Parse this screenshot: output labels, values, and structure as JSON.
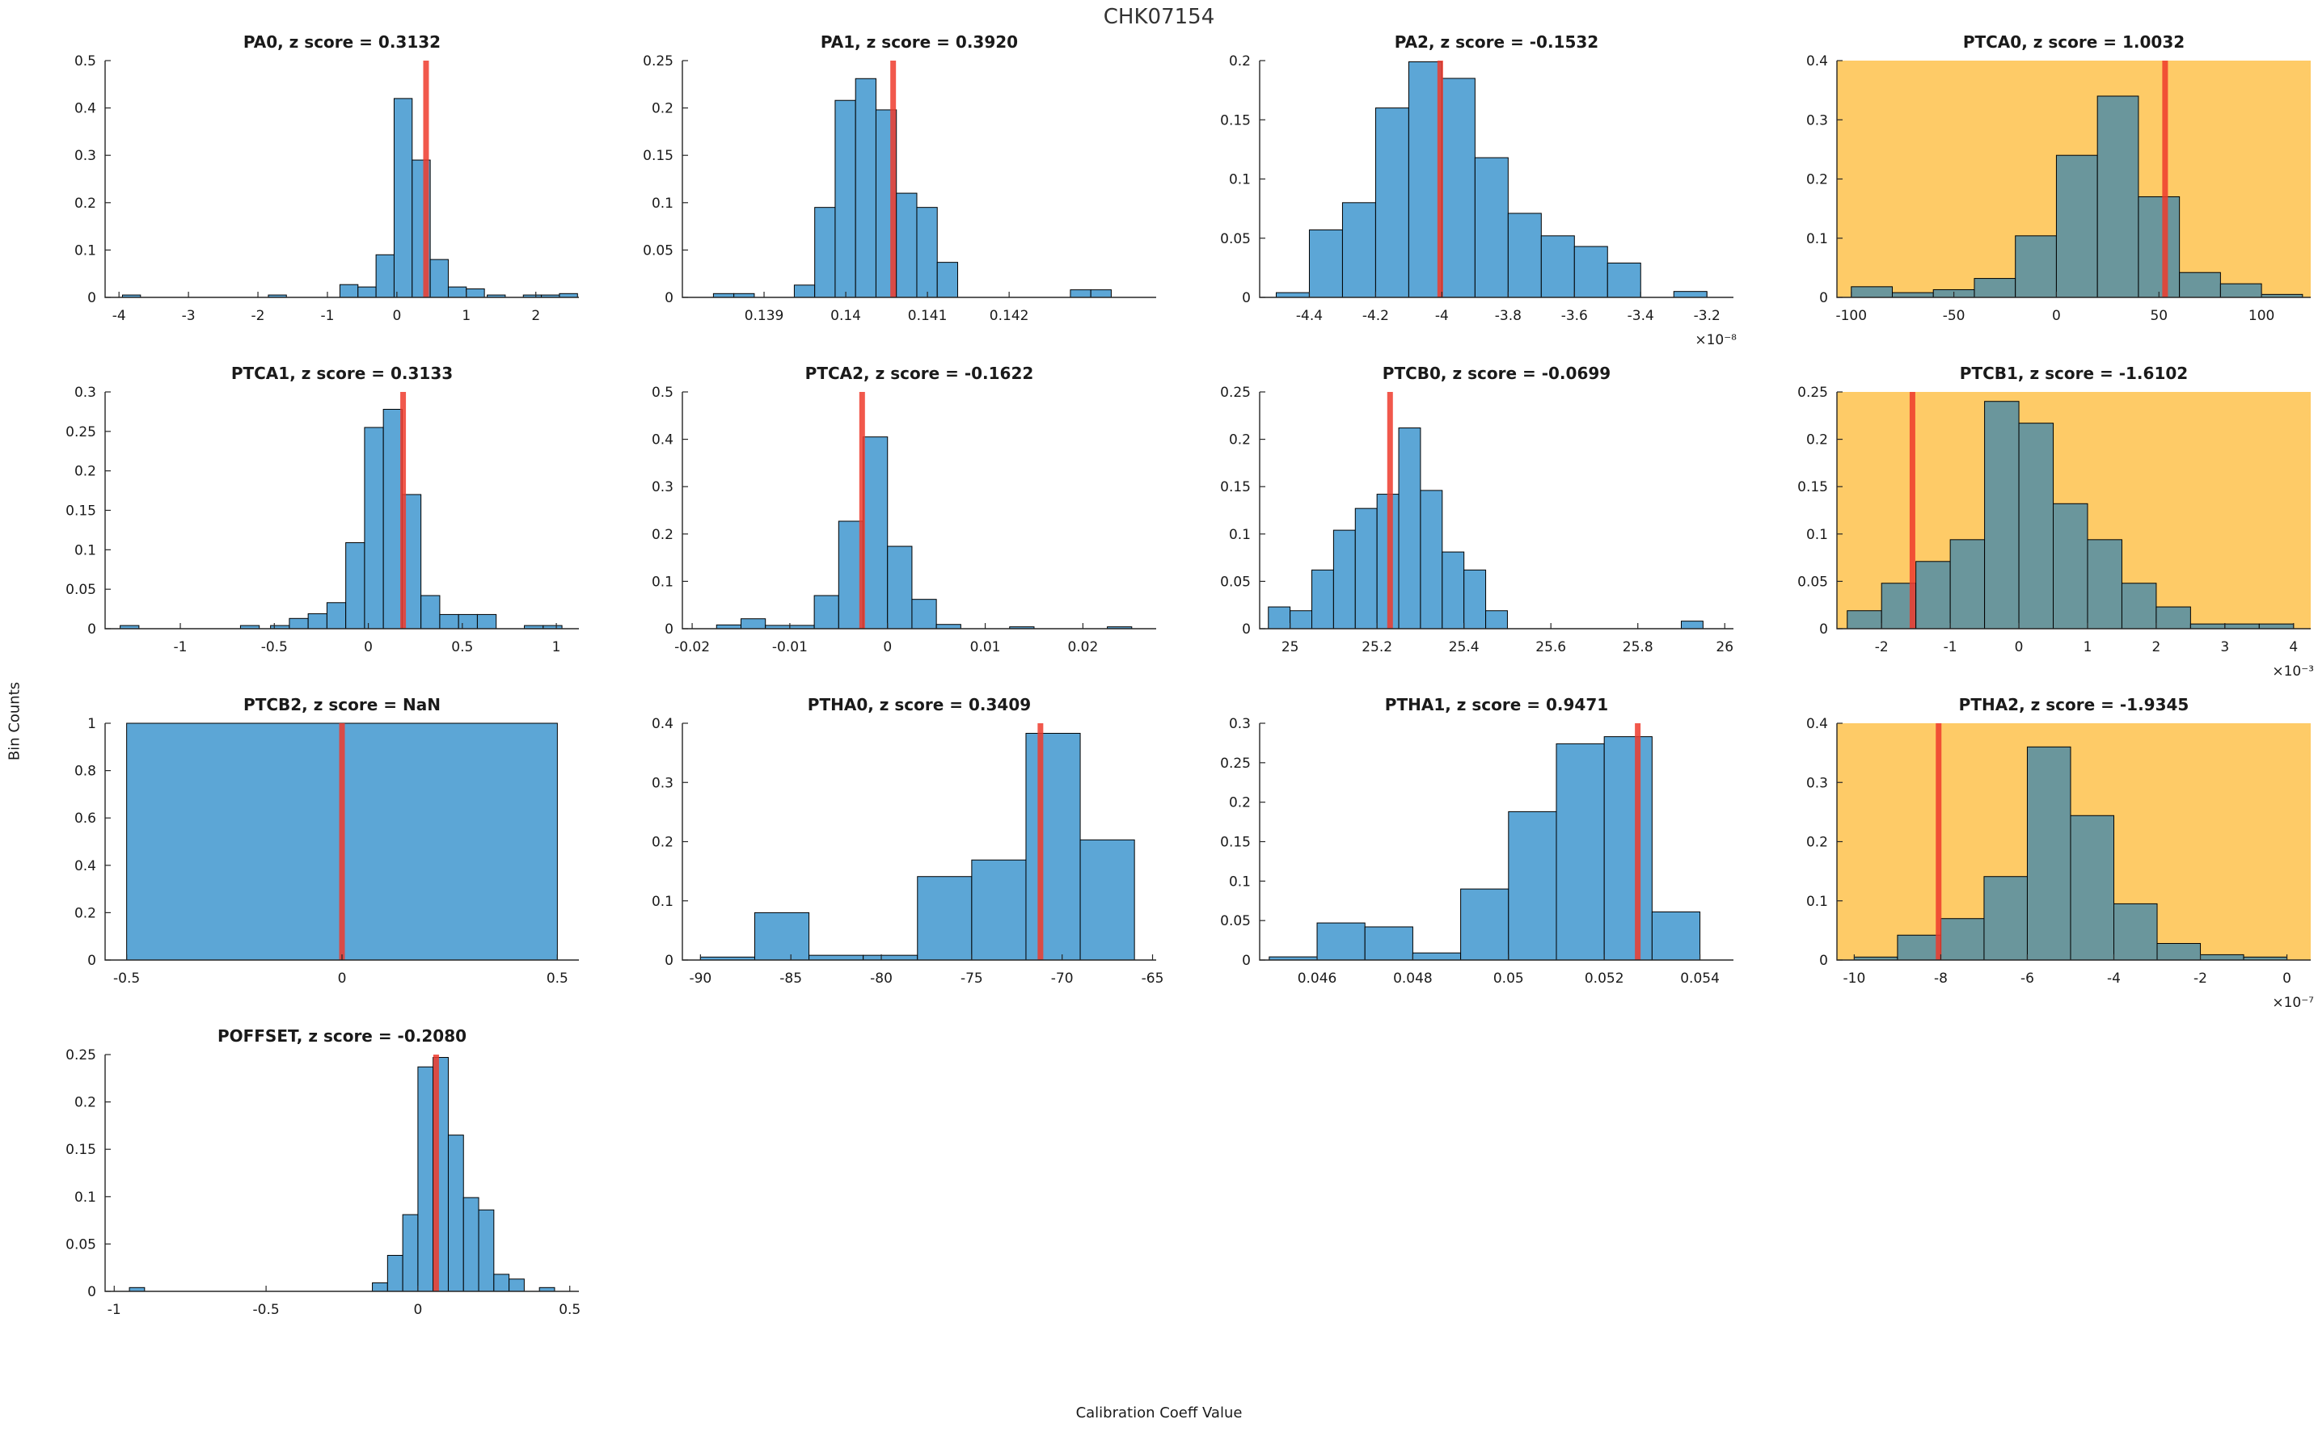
{
  "figure": {
    "title": "CHK07154",
    "xlabel": "Calibration Coeff Value",
    "ylabel": "Bin Counts"
  },
  "colors": {
    "bar_fill": "#5ca6d6",
    "bar_fill_flagged": "#6a969c",
    "bar_edge": "#000000",
    "flag_background": "#fecb67",
    "red_line": "#ef3b2d",
    "axis": "#262626",
    "title_text": "#1a1a1a"
  },
  "chart_data": [
    {
      "type": "bar",
      "name": "PA0",
      "title": "PA0, z score = 0.3132",
      "z_score": 0.3132,
      "flagged": false,
      "xlim": [
        -4.2,
        2.62
      ],
      "ylim": [
        0,
        0.5
      ],
      "xticks": [
        -4,
        -3,
        -2,
        -1,
        0,
        1,
        2
      ],
      "xtick_labels": [
        "-4",
        "-3",
        "-2",
        "-1",
        "0",
        "1",
        "2"
      ],
      "yticks": [
        0,
        0.1,
        0.2,
        0.3,
        0.4,
        0.5
      ],
      "ytick_labels": [
        "0",
        "0.1",
        "0.2",
        "0.3",
        "0.4",
        "0.5"
      ],
      "x_exponent": null,
      "bin_width": 0.26,
      "bars": [
        [
          -3.95,
          0.005
        ],
        [
          -1.85,
          0.005
        ],
        [
          -0.82,
          0.027
        ],
        [
          -0.56,
          0.022
        ],
        [
          -0.3,
          0.09
        ],
        [
          -0.04,
          0.42
        ],
        [
          0.22,
          0.29
        ],
        [
          0.48,
          0.08
        ],
        [
          0.74,
          0.022
        ],
        [
          1.0,
          0.018
        ],
        [
          1.3,
          0.005
        ],
        [
          1.82,
          0.005
        ],
        [
          2.08,
          0.005
        ],
        [
          2.34,
          0.008
        ]
      ],
      "red_line_x": 0.42
    },
    {
      "type": "bar",
      "name": "PA1",
      "title": "PA1, z score = 0.3920",
      "z_score": 0.392,
      "flagged": false,
      "xlim": [
        0.138,
        0.1438
      ],
      "ylim": [
        0,
        0.25
      ],
      "xticks": [
        0.139,
        0.14,
        0.141,
        0.142
      ],
      "xtick_labels": [
        "0.139",
        "0.14",
        "0.141",
        "0.142"
      ],
      "yticks": [
        0,
        0.05,
        0.1,
        0.15,
        0.2,
        0.25
      ],
      "ytick_labels": [
        "0",
        "0.05",
        "0.1",
        "0.15",
        "0.2",
        "0.25"
      ],
      "x_exponent": null,
      "bin_width": 0.00025,
      "bars": [
        [
          0.13838,
          0.004
        ],
        [
          0.13863,
          0.004
        ],
        [
          0.13937,
          0.013
        ],
        [
          0.13962,
          0.095
        ],
        [
          0.13987,
          0.208
        ],
        [
          0.14012,
          0.231
        ],
        [
          0.14037,
          0.198
        ],
        [
          0.14062,
          0.11
        ],
        [
          0.14087,
          0.095
        ],
        [
          0.14112,
          0.037
        ],
        [
          0.14275,
          0.008
        ],
        [
          0.143,
          0.008
        ]
      ],
      "red_line_x": 0.14058
    },
    {
      "type": "bar",
      "name": "PA2",
      "title": "PA2, z score = -0.1532",
      "z_score": -0.1532,
      "flagged": false,
      "xlim": [
        -4.55,
        -3.12
      ],
      "ylim": [
        0,
        0.2
      ],
      "xticks": [
        -4.4,
        -4.2,
        -4,
        -3.8,
        -3.6,
        -3.4,
        -3.2
      ],
      "xtick_labels": [
        "-4.4",
        "-4.2",
        "-4",
        "-3.8",
        "-3.6",
        "-3.4",
        "-3.2"
      ],
      "yticks": [
        0,
        0.05,
        0.1,
        0.15,
        0.2
      ],
      "ytick_labels": [
        "0",
        "0.05",
        "0.1",
        "0.15",
        "0.2"
      ],
      "x_exponent": "×10⁻⁸",
      "bin_width": 0.1,
      "bars": [
        [
          -4.5,
          0.004
        ],
        [
          -4.4,
          0.057
        ],
        [
          -4.3,
          0.08
        ],
        [
          -4.2,
          0.16
        ],
        [
          -4.1,
          0.199
        ],
        [
          -4.0,
          0.185
        ],
        [
          -3.9,
          0.118
        ],
        [
          -3.8,
          0.071
        ],
        [
          -3.7,
          0.052
        ],
        [
          -3.6,
          0.043
        ],
        [
          -3.5,
          0.029
        ],
        [
          -3.3,
          0.005
        ]
      ],
      "red_line_x": -4.005
    },
    {
      "type": "bar",
      "name": "PTCA0",
      "title": "PTCA0, z score = 1.0032",
      "z_score": 1.0032,
      "flagged": true,
      "xlim": [
        -107,
        124
      ],
      "ylim": [
        0,
        0.4
      ],
      "xticks": [
        -100,
        -50,
        0,
        50,
        100
      ],
      "xtick_labels": [
        "-100",
        "-50",
        "0",
        "50",
        "100"
      ],
      "yticks": [
        0,
        0.1,
        0.2,
        0.3,
        0.4
      ],
      "ytick_labels": [
        "0",
        "0.1",
        "0.2",
        "0.3",
        "0.4"
      ],
      "x_exponent": null,
      "bin_width": 20,
      "bars": [
        [
          -100,
          0.018
        ],
        [
          -80,
          0.008
        ],
        [
          -60,
          0.013
        ],
        [
          -40,
          0.032
        ],
        [
          -20,
          0.104
        ],
        [
          0,
          0.24
        ],
        [
          20,
          0.34
        ],
        [
          40,
          0.17
        ],
        [
          60,
          0.042
        ],
        [
          80,
          0.023
        ],
        [
          100,
          0.005
        ]
      ],
      "red_line_x": 53
    },
    {
      "type": "bar",
      "name": "PTCA1",
      "title": "PTCA1, z score = 0.3133",
      "z_score": 0.3133,
      "flagged": false,
      "xlim": [
        -1.4,
        1.12
      ],
      "ylim": [
        0,
        0.3
      ],
      "xticks": [
        -1,
        -0.5,
        0,
        0.5,
        1
      ],
      "xtick_labels": [
        "-1",
        "-0.5",
        "0",
        "0.5",
        "1"
      ],
      "yticks": [
        0,
        0.05,
        0.1,
        0.15,
        0.2,
        0.25,
        0.3
      ],
      "ytick_labels": [
        "0",
        "0.05",
        "0.1",
        "0.15",
        "0.2",
        "0.25",
        "0.3"
      ],
      "x_exponent": null,
      "bin_width": 0.1,
      "bars": [
        [
          -1.32,
          0.004
        ],
        [
          -0.68,
          0.004
        ],
        [
          -0.52,
          0.004
        ],
        [
          -0.42,
          0.013
        ],
        [
          -0.32,
          0.019
        ],
        [
          -0.22,
          0.033
        ],
        [
          -0.12,
          0.109
        ],
        [
          -0.02,
          0.255
        ],
        [
          0.08,
          0.278
        ],
        [
          0.18,
          0.17
        ],
        [
          0.28,
          0.042
        ],
        [
          0.38,
          0.018
        ],
        [
          0.48,
          0.018
        ],
        [
          0.58,
          0.018
        ],
        [
          0.83,
          0.004
        ],
        [
          0.93,
          0.004
        ]
      ],
      "red_line_x": 0.185
    },
    {
      "type": "bar",
      "name": "PTCA2",
      "title": "PTCA2, z score = -0.1622",
      "z_score": -0.1622,
      "flagged": false,
      "xlim": [
        -0.021,
        0.0275
      ],
      "ylim": [
        0,
        0.5
      ],
      "xticks": [
        -0.02,
        -0.01,
        0,
        0.01,
        0.02
      ],
      "xtick_labels": [
        "-0.02",
        "-0.01",
        "0",
        "0.01",
        "0.02"
      ],
      "yticks": [
        0,
        0.1,
        0.2,
        0.3,
        0.4,
        0.5
      ],
      "ytick_labels": [
        "0",
        "0.1",
        "0.2",
        "0.3",
        "0.4",
        "0.5"
      ],
      "x_exponent": null,
      "bin_width": 0.0025,
      "bars": [
        [
          -0.0175,
          0.008
        ],
        [
          -0.015,
          0.021
        ],
        [
          -0.0125,
          0.007
        ],
        [
          -0.01,
          0.007
        ],
        [
          -0.0075,
          0.07
        ],
        [
          -0.005,
          0.227
        ],
        [
          -0.0025,
          0.405
        ],
        [
          0,
          0.174
        ],
        [
          0.0025,
          0.062
        ],
        [
          0.005,
          0.009
        ],
        [
          0.0125,
          0.004
        ],
        [
          0.0225,
          0.004
        ]
      ],
      "red_line_x": -0.0026
    },
    {
      "type": "bar",
      "name": "PTCB0",
      "title": "PTCB0, z score = -0.0699",
      "z_score": -0.0699,
      "flagged": false,
      "xlim": [
        24.93,
        26.02
      ],
      "ylim": [
        0,
        0.25
      ],
      "xticks": [
        25,
        25.2,
        25.4,
        25.6,
        25.8,
        26
      ],
      "xtick_labels": [
        "25",
        "25.2",
        "25.4",
        "25.6",
        "25.8",
        "26"
      ],
      "yticks": [
        0,
        0.05,
        0.1,
        0.15,
        0.2,
        0.25
      ],
      "ytick_labels": [
        "0",
        "0.05",
        "0.1",
        "0.15",
        "0.2",
        "0.25"
      ],
      "x_exponent": null,
      "bin_width": 0.05,
      "bars": [
        [
          24.95,
          0.023
        ],
        [
          25.0,
          0.019
        ],
        [
          25.05,
          0.062
        ],
        [
          25.1,
          0.104
        ],
        [
          25.15,
          0.127
        ],
        [
          25.2,
          0.142
        ],
        [
          25.25,
          0.212
        ],
        [
          25.3,
          0.146
        ],
        [
          25.35,
          0.081
        ],
        [
          25.4,
          0.062
        ],
        [
          25.45,
          0.019
        ],
        [
          25.9,
          0.008
        ]
      ],
      "red_line_x": 25.23
    },
    {
      "type": "bar",
      "name": "PTCB1",
      "title": "PTCB1, z score = -1.6102",
      "z_score": -1.6102,
      "flagged": true,
      "xlim": [
        -2.65,
        4.25
      ],
      "ylim": [
        0,
        0.25
      ],
      "xticks": [
        -2,
        -1,
        0,
        1,
        2,
        3,
        4
      ],
      "xtick_labels": [
        "-2",
        "-1",
        "0",
        "1",
        "2",
        "3",
        "4"
      ],
      "yticks": [
        0,
        0.05,
        0.1,
        0.15,
        0.2,
        0.25
      ],
      "ytick_labels": [
        "0",
        "0.05",
        "0.1",
        "0.15",
        "0.2",
        "0.25"
      ],
      "x_exponent": "×10⁻³",
      "bin_width": 0.5,
      "bars": [
        [
          -2.5,
          0.019
        ],
        [
          -2,
          0.048
        ],
        [
          -1.5,
          0.071
        ],
        [
          -1,
          0.094
        ],
        [
          -0.5,
          0.24
        ],
        [
          0,
          0.217
        ],
        [
          0.5,
          0.132
        ],
        [
          1,
          0.094
        ],
        [
          1.5,
          0.048
        ],
        [
          2,
          0.023
        ],
        [
          2.5,
          0.005
        ],
        [
          3,
          0.005
        ],
        [
          3.5,
          0.005
        ]
      ],
      "red_line_x": -1.55
    },
    {
      "type": "bar",
      "name": "PTCB2",
      "title": "PTCB2, z score = NaN",
      "z_score": "NaN",
      "flagged": false,
      "xlim": [
        -0.55,
        0.55
      ],
      "ylim": [
        0,
        1
      ],
      "xticks": [
        -0.5,
        0,
        0.5
      ],
      "xtick_labels": [
        "-0.5",
        "0",
        "0.5"
      ],
      "yticks": [
        0,
        0.2,
        0.4,
        0.6,
        0.8,
        1
      ],
      "ytick_labels": [
        "0",
        "0.2",
        "0.4",
        "0.6",
        "0.8",
        "1"
      ],
      "x_exponent": null,
      "bin_width": 1.0,
      "bars": [
        [
          -0.5,
          1.0
        ]
      ],
      "red_line_x": 0
    },
    {
      "type": "bar",
      "name": "PTHA0",
      "title": "PTHA0, z score = 0.3409",
      "z_score": 0.3409,
      "flagged": false,
      "xlim": [
        -91,
        -64.8
      ],
      "ylim": [
        0,
        0.4
      ],
      "xticks": [
        -90,
        -85,
        -80,
        -75,
        -70,
        -65
      ],
      "xtick_labels": [
        "-90",
        "-85",
        "-80",
        "-75",
        "-70",
        "-65"
      ],
      "yticks": [
        0,
        0.1,
        0.2,
        0.3,
        0.4
      ],
      "ytick_labels": [
        "0",
        "0.1",
        "0.2",
        "0.3",
        "0.4"
      ],
      "x_exponent": null,
      "bin_width": 3,
      "bars": [
        [
          -90,
          0.005
        ],
        [
          -87,
          0.08
        ],
        [
          -84,
          0.008
        ],
        [
          -81,
          0.008
        ],
        [
          -78,
          0.141
        ],
        [
          -75,
          0.169
        ],
        [
          -72,
          0.383
        ],
        [
          -69,
          0.203
        ]
      ],
      "red_line_x": -71.2
    },
    {
      "type": "bar",
      "name": "PTHA1",
      "title": "PTHA1, z score = 0.9471",
      "z_score": 0.9471,
      "flagged": false,
      "xlim": [
        0.0448,
        0.0547
      ],
      "ylim": [
        0,
        0.3
      ],
      "xticks": [
        0.046,
        0.048,
        0.05,
        0.052,
        0.054
      ],
      "xtick_labels": [
        "0.046",
        "0.048",
        "0.05",
        "0.052",
        "0.054"
      ],
      "yticks": [
        0,
        0.05,
        0.1,
        0.15,
        0.2,
        0.25,
        0.3
      ],
      "ytick_labels": [
        "0",
        "0.05",
        "0.1",
        "0.15",
        "0.2",
        "0.25",
        "0.3"
      ],
      "x_exponent": null,
      "bin_width": 0.001,
      "bars": [
        [
          0.045,
          0.004
        ],
        [
          0.046,
          0.047
        ],
        [
          0.047,
          0.042
        ],
        [
          0.048,
          0.009
        ],
        [
          0.049,
          0.09
        ],
        [
          0.05,
          0.188
        ],
        [
          0.051,
          0.274
        ],
        [
          0.052,
          0.283
        ],
        [
          0.053,
          0.061
        ]
      ],
      "red_line_x": 0.0527
    },
    {
      "type": "bar",
      "name": "PTHA2",
      "title": "PTHA2, z score = -1.9345",
      "z_score": -1.9345,
      "flagged": true,
      "xlim": [
        -10.4,
        0.55
      ],
      "ylim": [
        0,
        0.4
      ],
      "xticks": [
        -10,
        -8,
        -6,
        -4,
        -2,
        0
      ],
      "xtick_labels": [
        "-10",
        "-8",
        "-6",
        "-4",
        "-2",
        "0"
      ],
      "yticks": [
        0,
        0.1,
        0.2,
        0.3,
        0.4
      ],
      "ytick_labels": [
        "0",
        "0.1",
        "0.2",
        "0.3",
        "0.4"
      ],
      "x_exponent": "×10⁻⁷",
      "bin_width": 1,
      "bars": [
        [
          -10,
          0.005
        ],
        [
          -9,
          0.042
        ],
        [
          -8,
          0.07
        ],
        [
          -7,
          0.141
        ],
        [
          -6,
          0.36
        ],
        [
          -5,
          0.244
        ],
        [
          -4,
          0.095
        ],
        [
          -3,
          0.028
        ],
        [
          -2,
          0.009
        ],
        [
          -1,
          0.005
        ]
      ],
      "red_line_x": -8.05
    },
    {
      "type": "bar",
      "name": "POFFSET",
      "title": "POFFSET, z score = -0.2080",
      "z_score": -0.208,
      "flagged": false,
      "xlim": [
        -1.03,
        0.53
      ],
      "ylim": [
        0,
        0.25
      ],
      "xticks": [
        -1,
        -0.5,
        0,
        0.5
      ],
      "xtick_labels": [
        "-1",
        "-0.5",
        "0",
        "0.5"
      ],
      "yticks": [
        0,
        0.05,
        0.1,
        0.15,
        0.2,
        0.25
      ],
      "ytick_labels": [
        "0",
        "0.05",
        "0.1",
        "0.15",
        "0.2",
        "0.25"
      ],
      "x_exponent": null,
      "bin_width": 0.05,
      "bars": [
        [
          -0.95,
          0.004
        ],
        [
          -0.15,
          0.009
        ],
        [
          -0.1,
          0.038
        ],
        [
          -0.05,
          0.081
        ],
        [
          0,
          0.237
        ],
        [
          0.05,
          0.247
        ],
        [
          0.1,
          0.165
        ],
        [
          0.15,
          0.099
        ],
        [
          0.2,
          0.086
        ],
        [
          0.25,
          0.018
        ],
        [
          0.3,
          0.013
        ],
        [
          0.4,
          0.004
        ]
      ],
      "red_line_x": 0.06
    }
  ]
}
